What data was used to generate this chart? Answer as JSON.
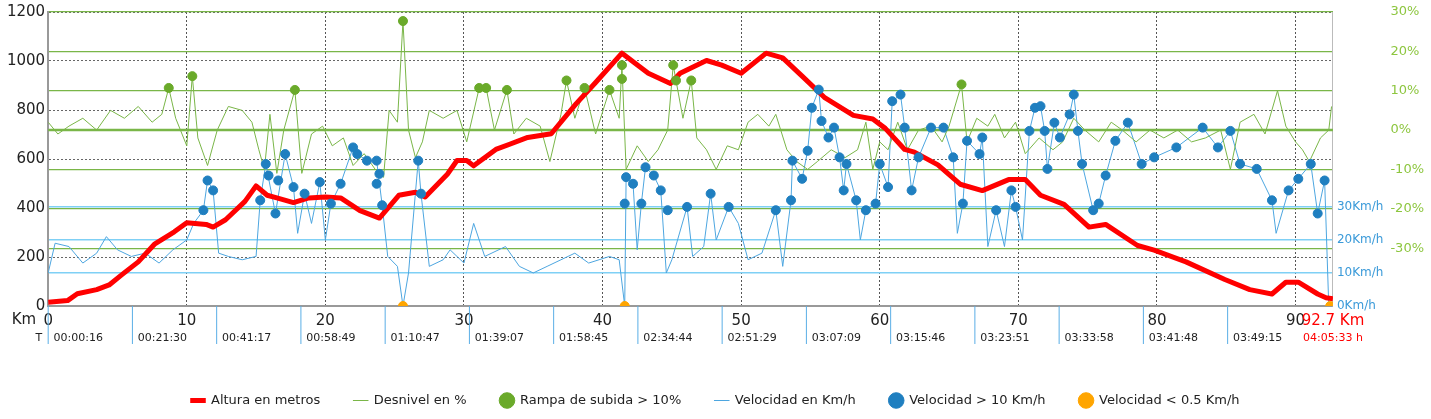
{
  "chart_data": {
    "type": "line",
    "xlabel": "Km",
    "xlim": [
      0,
      92.7
    ],
    "xticks": [
      0,
      10,
      20,
      30,
      40,
      50,
      60,
      70,
      80,
      90,
      {
        "value": 92.7,
        "label": "92.7 Km"
      }
    ],
    "annotations": [
      "T",
      "00:00:16",
      "00:21:30",
      "00:41:17",
      "00:58:49",
      "01:10:47",
      "01:39:07",
      "01:58:45",
      "02:34:44",
      "02:51:29",
      "03:07:09",
      "03:15:46",
      "03:23:51",
      "03:33:58",
      "03:41:48",
      "03:49:15",
      "04:05:33 h"
    ],
    "ref_lines": [
      {
        "axis": "y2",
        "value": 0,
        "color": "#7ab648"
      }
    ],
    "ylim": [
      0,
      1200
    ],
    "yticks": [
      0,
      200,
      400,
      600,
      800,
      1000,
      1200
    ],
    "y2lim": [
      -44.7,
      30
    ],
    "y2ticks": [
      {
        "value": 30,
        "label": "30%"
      },
      {
        "value": 20,
        "label": "20%"
      },
      {
        "value": 10,
        "label": "10%"
      },
      {
        "value": 0,
        "label": "0%"
      },
      {
        "value": -10,
        "label": "-10%"
      },
      {
        "value": -20,
        "label": "-20%"
      },
      {
        "value": -30,
        "label": "-30%"
      }
    ],
    "y3lim": [
      0,
      89
    ],
    "y3ticks": [
      {
        "value": 0,
        "label": "0Km/h"
      },
      {
        "value": 10,
        "label": "10Km/h"
      },
      {
        "value": 20,
        "label": "20Km/h"
      },
      {
        "value": 30,
        "label": "30Km/h"
      }
    ],
    "grid": true,
    "legend": "bottom",
    "series": [
      {
        "name": "Altura en metros",
        "type": "line",
        "marker": "none",
        "color": "#ff0000",
        "x": [
          0,
          1.4,
          2.1,
          3.5,
          4.4,
          5.3,
          6.5,
          7.7,
          9.1,
          10,
          11.4,
          11.9,
          12.8,
          14.2,
          15,
          15.8,
          16.5,
          17.7,
          18.8,
          20,
          21.1,
          22.5,
          23.9,
          25.3,
          26.5,
          27.2,
          28.8,
          29.5,
          30.2,
          30.7,
          32.3,
          34.6,
          36.3,
          38.1,
          39.5,
          41.4,
          43.3,
          44.9,
          45.6,
          47.5,
          48.6,
          50,
          51.8,
          53,
          54.4,
          56,
          58.1,
          59.5,
          60.4,
          61.8,
          62.5,
          64.2,
          65.8,
          67.4,
          69.3,
          70.5,
          71.6,
          73.3,
          75.1,
          76.3,
          78.6,
          79.8,
          82.1,
          84.9,
          86.7,
          88.3,
          89.3,
          90.2,
          91.6,
          92.2,
          92.7
        ],
        "values": [
          15,
          22,
          50,
          67,
          86,
          127,
          180,
          254,
          303,
          340,
          333,
          322,
          352,
          427,
          490,
          452,
          441,
          422,
          441,
          445,
          441,
          389,
          359,
          452,
          464,
          445,
          538,
          594,
          594,
          572,
          639,
          688,
          703,
          826,
          912,
          1032,
          950,
          908,
          950,
          1002,
          983,
          950,
          1032,
          1013,
          938,
          852,
          778,
          763,
          725,
          639,
          628,
          576,
          497,
          471,
          516,
          516,
          452,
          415,
          322,
          333,
          247,
          228,
          180,
          108,
          67,
          49,
          97,
          97,
          49,
          34,
          30
        ]
      },
      {
        "name": "Desnivel en %",
        "type": "line",
        "marker": "none",
        "axis": "y2",
        "color": "#7ab648",
        "x": [
          0,
          0.7,
          1.5,
          2.5,
          3.5,
          4.5,
          5.5,
          6.5,
          7.5,
          8.2,
          8.7,
          9.2,
          10,
          10.4,
          10.8,
          11.5,
          12.2,
          13,
          14,
          14.7,
          15.2,
          15.6,
          16,
          16.5,
          17,
          17.8,
          18.3,
          19,
          19.8,
          20.5,
          21.3,
          22,
          22.8,
          23.6,
          24.2,
          24.6,
          25.2,
          25.6,
          26,
          26.5,
          27,
          27.5,
          28.5,
          29.5,
          30.2,
          31.1,
          31.6,
          32.2,
          33.1,
          33.6,
          34.5,
          35.5,
          36.2,
          37,
          37.4,
          38,
          38.7,
          39.5,
          40.5,
          41.2,
          41.4,
          41.7,
          42.5,
          43.3,
          44,
          44.7,
          45.1,
          45.3,
          45.8,
          46.4,
          46.8,
          47.5,
          48.2,
          49,
          49.8,
          50.5,
          51.2,
          52,
          52.5,
          53.3,
          54,
          54.8,
          55.5,
          56.5,
          57.5,
          58.4,
          59,
          59.5,
          60,
          60.6,
          61.3,
          62,
          62.8,
          63.7,
          64.5,
          65,
          65.9,
          66.3,
          67,
          67.8,
          68.3,
          69,
          69.8,
          70.5,
          71.5,
          72.5,
          73.2,
          74,
          74.8,
          75.8,
          76.7,
          77.5,
          78.5,
          79.5,
          80.5,
          81.5,
          82.5,
          83.5,
          84.6,
          85.3,
          86,
          87,
          87.8,
          88.7,
          89.3,
          90,
          90.5,
          91,
          91.8,
          92.4,
          92.6
        ],
        "values": [
          2,
          -1,
          1,
          3,
          0,
          5,
          3,
          6,
          2,
          4,
          10.7,
          3,
          -4,
          13.7,
          -2,
          -9,
          0,
          6,
          5,
          2,
          -5,
          -10,
          4,
          -11,
          0,
          10.2,
          -11,
          -1,
          1,
          -4,
          -2,
          -9,
          -6,
          -10,
          -12,
          5,
          2,
          27.7,
          0,
          -7,
          -3,
          5,
          3,
          5,
          -3,
          10.7,
          10.7,
          0,
          10.2,
          -1,
          3,
          1,
          -8,
          4,
          12.6,
          3,
          10.7,
          -1,
          10.2,
          3,
          16.5,
          -10,
          -4,
          -8,
          -5,
          0,
          16.5,
          12.6,
          3,
          12.6,
          -2,
          -5,
          -10,
          -4,
          -5,
          2,
          4,
          1,
          4,
          -5,
          -8,
          -10,
          -8,
          -5,
          -7,
          -5,
          2,
          -10,
          -3,
          -5,
          2,
          -5,
          0,
          1,
          -3,
          1,
          11.6,
          -3,
          3,
          1,
          4,
          -2,
          2,
          -6,
          -2,
          -5,
          -3,
          3,
          0,
          -3,
          2,
          0,
          -3,
          0,
          -2,
          0,
          -3,
          -2,
          0,
          -10,
          2,
          4,
          -1,
          10,
          1,
          -3,
          -5,
          -8,
          -2,
          0,
          6
        ]
      },
      {
        "name": "Rampa de subida > 10%",
        "type": "scatter",
        "marker": "circle",
        "axis": "y2",
        "color": "#6aaa2a",
        "x": [
          8.7,
          10.4,
          17.8,
          25.6,
          31.1,
          31.6,
          33.1,
          37.4,
          38.7,
          40.5,
          41.4,
          41.4,
          45.1,
          45.3,
          46.4,
          65.9
        ],
        "values": [
          10.7,
          13.7,
          10.2,
          27.7,
          10.7,
          10.7,
          10.2,
          12.6,
          10.7,
          10.2,
          16.5,
          13,
          16.5,
          12.6,
          12.6,
          11.6
        ]
      },
      {
        "name": "Velocidad en Km/h",
        "type": "line",
        "marker": "none",
        "axis": "y3",
        "color": "#4da6e0",
        "x": [
          0,
          0.5,
          1.5,
          2.5,
          3.5,
          4.2,
          5,
          6,
          7,
          8,
          9,
          10,
          10.5,
          11.2,
          11.5,
          11.9,
          12.3,
          13,
          14,
          15,
          15.3,
          15.7,
          16.4,
          17.1,
          17.7,
          18,
          18.5,
          19,
          19.6,
          20,
          20.4,
          21.1,
          22,
          22.3,
          23,
          23.7,
          24.1,
          24.5,
          25.2,
          25.6,
          26,
          26.7,
          26.9,
          27.5,
          28.5,
          29,
          30,
          30.7,
          31.5,
          33,
          34,
          35,
          36,
          37,
          38,
          39,
          40.5,
          41.2,
          41.6,
          41.7,
          42.2,
          42.5,
          42.8,
          43.1,
          43.7,
          44.2,
          44.6,
          45,
          46.1,
          46.5,
          47.3,
          47.8,
          48.2,
          49.1,
          49.8,
          50.5,
          51.5,
          52.5,
          53,
          53.6,
          53.7,
          54.4,
          54.8,
          55.1,
          55.6,
          55.8,
          56.3,
          56.7,
          57.1,
          57.4,
          57.6,
          58.3,
          58.6,
          59,
          59.7,
          60,
          60.6,
          60.9,
          61.5,
          61.8,
          62.3,
          62.8,
          63.7,
          64.6,
          65.3,
          65.6,
          66,
          66.3,
          67.2,
          67.4,
          67.8,
          68.4,
          69,
          69.5,
          69.8,
          70.3,
          70.8,
          71.2,
          71.6,
          71.9,
          72.1,
          72.6,
          73,
          73.7,
          74,
          74.3,
          74.6,
          75.4,
          75.8,
          76.3,
          77,
          77.9,
          78.9,
          79.8,
          81.4,
          83.3,
          84.4,
          85.3,
          86,
          87.2,
          88.3,
          88.6,
          89.5,
          90.2,
          91.1,
          91.6,
          92.1,
          92.4,
          92.7
        ],
        "values": [
          10,
          19,
          18,
          13,
          16,
          21,
          17,
          15,
          16,
          13,
          17,
          20,
          25,
          29,
          38,
          35,
          16,
          15,
          14,
          15,
          32,
          43,
          28,
          46,
          36,
          22,
          34,
          25,
          37.5,
          20,
          31,
          37,
          48,
          46,
          44,
          44,
          30.5,
          15,
          12,
          0,
          10,
          44,
          34,
          12,
          14,
          17,
          13,
          25,
          15,
          18,
          12,
          10,
          12,
          14,
          16,
          13,
          15,
          14,
          0,
          39,
          37,
          17,
          31,
          42,
          39.5,
          35,
          10,
          14,
          30,
          15,
          18,
          34,
          20,
          30,
          25,
          14,
          16,
          29,
          12,
          32,
          44,
          38.5,
          47,
          60,
          65.5,
          56,
          51,
          54,
          45,
          35,
          43,
          32,
          20,
          29,
          31,
          43,
          36,
          62,
          64,
          54,
          35,
          45,
          54,
          54,
          45,
          22,
          31,
          50,
          46,
          51,
          18,
          29,
          18,
          35,
          30,
          20,
          53,
          60,
          60.5,
          53,
          41.5,
          55.5,
          51,
          58,
          64,
          53,
          43,
          29,
          31,
          39.5,
          50,
          55.5,
          43,
          45,
          48,
          54,
          48,
          53,
          43,
          41.5,
          32,
          22,
          35,
          38.5,
          43,
          28,
          38,
          0,
          0
        ]
      },
      {
        "name": "Velocidad > 10 Km/h",
        "type": "scatter",
        "marker": "circle",
        "axis": "y3",
        "color": "#1f7fc0",
        "x": [
          11.2,
          11.5,
          11.9,
          15.3,
          15.7,
          15.9,
          16.4,
          16.6,
          17.1,
          17.7,
          18.5,
          19.6,
          20.4,
          21.1,
          22,
          22.3,
          23,
          23.7,
          23.7,
          23.9,
          24.1,
          26.7,
          26.9,
          41.6,
          41.7,
          42.2,
          42.8,
          43.1,
          43.7,
          44.2,
          44.7,
          46.1,
          47.8,
          49.1,
          52.5,
          53.6,
          53.7,
          54.4,
          54.8,
          55.1,
          55.6,
          55.8,
          56.3,
          56.7,
          57.1,
          57.4,
          57.6,
          58.3,
          59,
          59.7,
          60,
          60.6,
          60.9,
          61.5,
          61.8,
          62.3,
          62.8,
          63.7,
          64.6,
          65.3,
          66,
          66.3,
          67.2,
          67.4,
          68.4,
          69.5,
          69.8,
          70.8,
          71.2,
          71.6,
          71.9,
          72.1,
          72.6,
          73,
          73.7,
          74,
          74.3,
          74.6,
          75.4,
          75.8,
          76.3,
          77,
          77.9,
          78.9,
          79.8,
          81.4,
          83.3,
          84.4,
          85.3,
          86,
          87.2,
          88.3,
          89.5,
          90.2,
          91.1,
          91.6,
          92.1
        ],
        "values": [
          29,
          38,
          35,
          32,
          43,
          39.5,
          28,
          38,
          46,
          36,
          34,
          37.5,
          31,
          37,
          48,
          46,
          44,
          44,
          37,
          40,
          30.5,
          44,
          34,
          31,
          39,
          37,
          31,
          42,
          39.5,
          35,
          29,
          30,
          34,
          30,
          29,
          32,
          44,
          38.5,
          47,
          60,
          65.5,
          56,
          51,
          54,
          45,
          35,
          43,
          32,
          29,
          31,
          43,
          36,
          62,
          64,
          54,
          35,
          45,
          54,
          54,
          45,
          31,
          50,
          46,
          51,
          29,
          35,
          30,
          53,
          60,
          60.5,
          53,
          41.5,
          55.5,
          51,
          58,
          64,
          53,
          43,
          29,
          31,
          39.5,
          50,
          55.5,
          43,
          45,
          48,
          54,
          48,
          53,
          43,
          41.5,
          32,
          35,
          38.5,
          43,
          28,
          38
        ]
      },
      {
        "name": "Velocidad < 0.5 Km/h",
        "type": "scatter",
        "marker": "circle",
        "axis": "y3",
        "color": "#ffa500",
        "x": [
          25.6,
          41.6,
          92.5
        ],
        "values": [
          0,
          0,
          0
        ]
      }
    ]
  }
}
